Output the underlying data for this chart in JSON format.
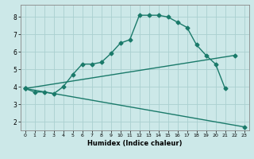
{
  "xlabel": "Humidex (Indice chaleur)",
  "bg_color": "#cce8e8",
  "grid_color": "#aad0d0",
  "line_color": "#1a7a6a",
  "xlim": [
    -0.5,
    23.5
  ],
  "ylim": [
    1.5,
    8.7
  ],
  "xticks": [
    0,
    1,
    2,
    3,
    4,
    5,
    6,
    7,
    8,
    9,
    10,
    11,
    12,
    13,
    14,
    15,
    16,
    17,
    18,
    19,
    20,
    21,
    22,
    23
  ],
  "yticks": [
    2,
    3,
    4,
    5,
    6,
    7,
    8
  ],
  "line1_x": [
    0,
    1,
    2,
    3,
    4,
    5,
    6,
    7,
    8,
    9,
    10,
    11,
    12,
    13,
    14,
    15,
    16,
    17,
    18,
    19,
    20,
    21
  ],
  "line1_y": [
    3.9,
    3.7,
    3.7,
    3.6,
    4.0,
    4.7,
    5.3,
    5.3,
    5.4,
    5.9,
    6.5,
    6.7,
    8.1,
    8.1,
    8.1,
    8.0,
    7.7,
    7.4,
    6.4,
    5.8,
    5.3,
    3.9
  ],
  "line2_x": [
    0,
    22
  ],
  "line2_y": [
    3.9,
    5.8
  ],
  "line3_x": [
    0,
    23
  ],
  "line3_y": [
    3.9,
    1.7
  ],
  "marker": "D",
  "markersize": 2.5,
  "linewidth": 1.0
}
